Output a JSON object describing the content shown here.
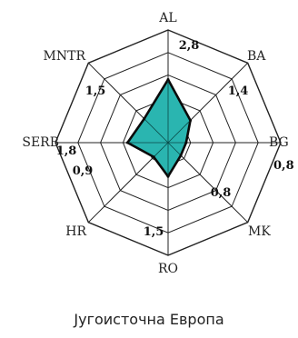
{
  "chart_data": {
    "type": "radar",
    "caption": "Југоисточна Европа",
    "axes": [
      "AL",
      "BA",
      "BG",
      "MK",
      "RO",
      "HR",
      "SERB",
      "MNTR"
    ],
    "value_labels": [
      "2,8",
      "1,4",
      "0,8",
      "0,8",
      "1,5",
      "0,9",
      "1,8",
      "1,5"
    ],
    "values": [
      2.8,
      1.4,
      0.8,
      0.8,
      1.5,
      0.9,
      1.8,
      1.5
    ],
    "scale_max": 5,
    "rings": 5,
    "fill_color": "#2ab5b0",
    "outline_color": "#0a0a0a",
    "grid_color": "#222222"
  }
}
